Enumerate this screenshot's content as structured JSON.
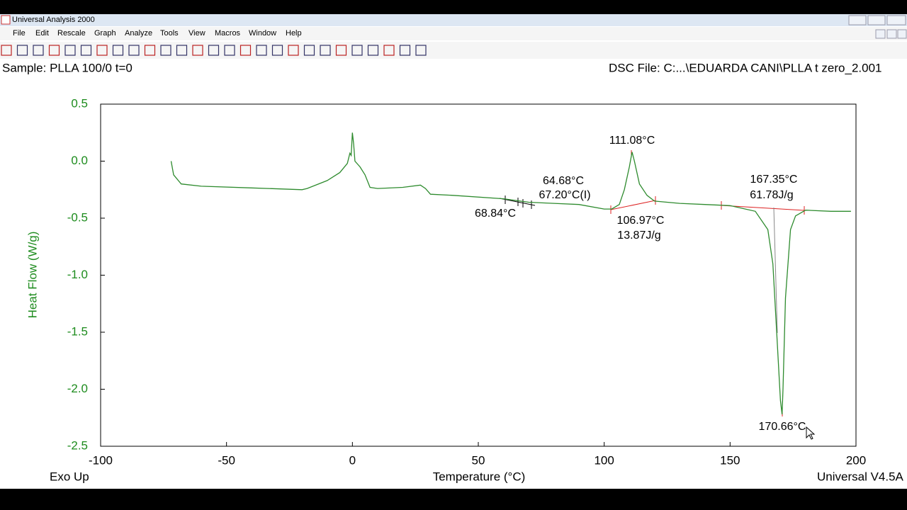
{
  "window": {
    "title": "Universal Analysis 2000",
    "menu": [
      "File",
      "Edit",
      "Rescale",
      "Graph",
      "Analyze",
      "Tools",
      "View",
      "Macros",
      "Window",
      "Help"
    ]
  },
  "header": {
    "sample": "Sample: PLLA 100/0  t=0",
    "file": "DSC File: C:...\\EDUARDA CANI\\PLLA t zero_2.001"
  },
  "footer": {
    "left": "Exo Up",
    "right": "Universal V4.5A"
  },
  "chart_data": {
    "type": "line",
    "xlabel": "Temperature (°C)",
    "ylabel": "Heat Flow (W/g)",
    "xlim": [
      -100,
      200
    ],
    "xticks": [
      -100,
      -50,
      0,
      50,
      100,
      150,
      200
    ],
    "ylim": [
      -2.5,
      0.5
    ],
    "yticks": [
      {
        "value": -2.5,
        "label": "-2.5"
      },
      {
        "value": -2,
        "label": "-2.0"
      },
      {
        "value": -1.5,
        "label": "-1.5"
      },
      {
        "value": -1,
        "label": "-1.0"
      },
      {
        "value": -0.5,
        "label": "-0.5"
      },
      {
        "value": 0,
        "label": "0.0"
      },
      {
        "value": 0.5,
        "label": "0.5"
      }
    ],
    "color": "#2e8b2e",
    "x": [
      -72,
      -71,
      -68,
      -60,
      -40,
      -20,
      -18,
      -10,
      -5,
      -2,
      -1,
      -0.5,
      0,
      0.5,
      1,
      3,
      5,
      7,
      10,
      20,
      27,
      29,
      31,
      40,
      60,
      70,
      80,
      90,
      100,
      103,
      106,
      108,
      110,
      111.08,
      112,
      114,
      117,
      120,
      130,
      140,
      150,
      160,
      165,
      167,
      168.5,
      170,
      170.66,
      171,
      172,
      174,
      176,
      180,
      190,
      198
    ],
    "values": [
      0.0,
      -0.12,
      -0.2,
      -0.22,
      -0.235,
      -0.25,
      -0.24,
      -0.17,
      -0.1,
      -0.02,
      0.07,
      0.05,
      0.25,
      0.15,
      0.0,
      -0.05,
      -0.12,
      -0.23,
      -0.24,
      -0.23,
      -0.21,
      -0.24,
      -0.29,
      -0.3,
      -0.33,
      -0.36,
      -0.37,
      -0.38,
      -0.42,
      -0.42,
      -0.38,
      -0.25,
      -0.05,
      0.08,
      0.0,
      -0.2,
      -0.3,
      -0.35,
      -0.37,
      -0.38,
      -0.39,
      -0.44,
      -0.6,
      -0.9,
      -1.5,
      -2.1,
      -2.22,
      -2.0,
      -1.2,
      -0.6,
      -0.48,
      -0.43,
      -0.44,
      -0.44
    ],
    "annotations": [
      "64.68°C",
      "67.20°C(I)",
      "68.84°C",
      "111.08°C",
      "106.97°C",
      "13.87J/g",
      "167.35°C",
      "61.78J/g",
      "170.66°C"
    ]
  }
}
